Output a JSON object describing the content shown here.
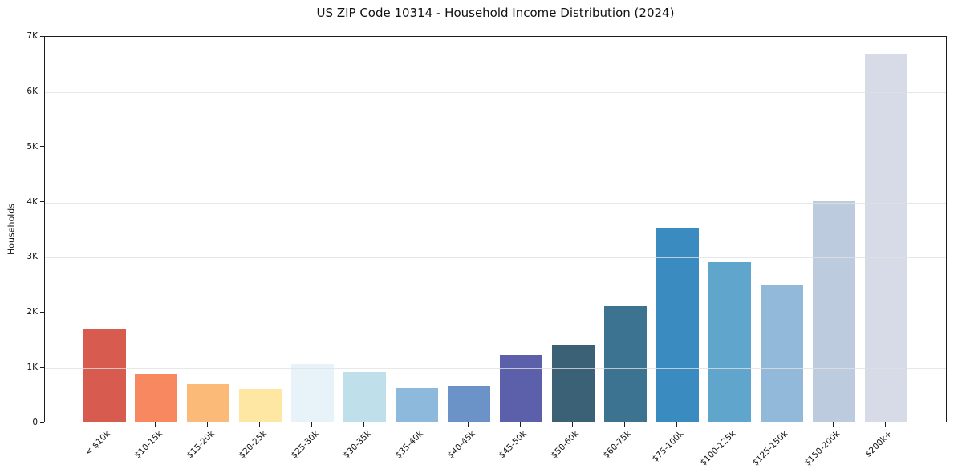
{
  "chart_data": {
    "type": "bar",
    "title": "US ZIP Code 10314 - Household Income Distribution (2024)",
    "xlabel": "",
    "ylabel": "Households",
    "categories": [
      "< $10k",
      "$10-15k",
      "$15-20k",
      "$20-25k",
      "$25-30k",
      "$30-35k",
      "$35-40k",
      "$40-45k",
      "$45-50k",
      "$50-60k",
      "$60-75k",
      "$75-100k",
      "$100-125k",
      "$125-150k",
      "$150-200k",
      "$200k+"
    ],
    "values": [
      1690,
      850,
      690,
      600,
      1040,
      900,
      610,
      660,
      1210,
      1390,
      2090,
      3500,
      2890,
      2480,
      4000,
      6660
    ],
    "bar_colors": [
      "#d75b4f",
      "#f8885f",
      "#fcba78",
      "#fde7a3",
      "#e7f3f8",
      "#bfe0eb",
      "#8cb9dc",
      "#6b93c8",
      "#5c5fa9",
      "#3a6175",
      "#3b7390",
      "#3a8cc0",
      "#5fa5cc",
      "#92b9d9",
      "#bdcbde",
      "#d7dae7"
    ],
    "ylim": [
      0,
      7000
    ],
    "yticks": [
      0,
      1000,
      2000,
      3000,
      4000,
      5000,
      6000,
      7000
    ],
    "ytick_labels": [
      "0",
      "1K",
      "2K",
      "3K",
      "4K",
      "5K",
      "6K",
      "7K"
    ],
    "grid": true,
    "legend": "none",
    "x_tick_rotation": 45
  }
}
